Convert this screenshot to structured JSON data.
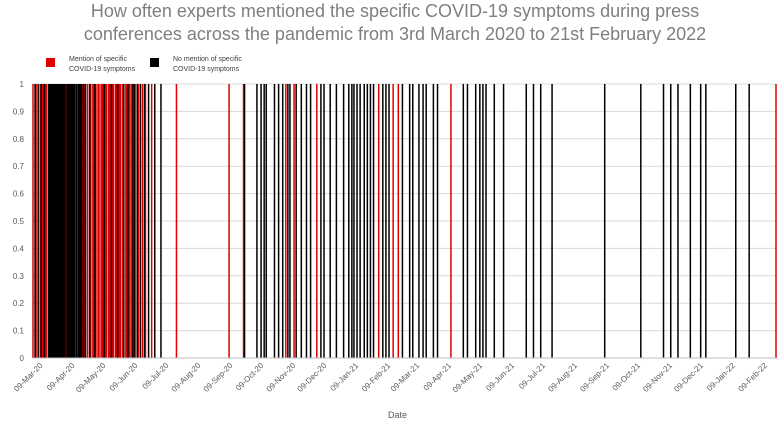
{
  "chart_data": {
    "type": "bar",
    "title": "How often experts mentioned the specific COVID-19 symptoms during press conferences across the pandemic from 3rd March 2020 to 21st February 2022",
    "xlabel": "Date",
    "ylabel": "",
    "ylim": [
      0,
      1
    ],
    "yticks": [
      "0",
      "0.1",
      "0.2",
      "0.3",
      "0.4",
      "0.5",
      "0.6",
      "0.7",
      "0.8",
      "0.9",
      "1"
    ],
    "xticks": [
      "09-Mar-20",
      "09-Apr-20",
      "09-May-20",
      "09-Jun-20",
      "09-Jul-20",
      "09-Aug-20",
      "09-Sep-20",
      "09-Oct-20",
      "09-Nov-20",
      "09-Dec-20",
      "09-Jan-21",
      "09-Feb-21",
      "09-Mar-21",
      "09-Apr-21",
      "09-May-21",
      "09-Jun-21",
      "09-Jul-21",
      "09-Aug-21",
      "09-Sep-21",
      "09-Oct-21",
      "09-Nov-21",
      "09-Dec-21",
      "09-Jan-22",
      "09-Feb-22"
    ],
    "x_start": "2020-03-03",
    "x_end": "2022-02-21",
    "legend": [
      {
        "label": "Mention of specific COVID-19 symptoms",
        "color": "#e00000"
      },
      {
        "label": "No mention of specific COVID-19 symptoms",
        "color": "#000000"
      }
    ],
    "series": [
      {
        "name": "Mention of specific COVID-19 symptoms",
        "color": "#e00000",
        "value": 1,
        "dates": [
          "2020-03-03",
          "2020-03-06",
          "2020-03-10",
          "2020-03-12",
          "2020-03-13",
          "2020-03-15",
          "2020-03-16",
          "2020-04-04",
          "2020-04-13",
          "2020-04-15",
          "2020-04-20",
          "2020-04-22",
          "2020-04-25",
          "2020-04-28",
          "2020-04-30",
          "2020-05-01",
          "2020-05-03",
          "2020-05-05",
          "2020-05-06",
          "2020-05-08",
          "2020-05-09",
          "2020-05-10",
          "2020-05-12",
          "2020-05-13",
          "2020-05-15",
          "2020-05-16",
          "2020-05-17",
          "2020-05-19",
          "2020-05-20",
          "2020-05-22",
          "2020-05-23",
          "2020-05-25",
          "2020-05-26",
          "2020-05-27",
          "2020-05-29",
          "2020-06-01",
          "2020-06-02",
          "2020-06-04",
          "2020-06-05",
          "2020-06-08",
          "2020-06-10",
          "2020-06-13",
          "2020-06-17",
          "2020-06-20",
          "2020-06-26",
          "2020-07-20",
          "2020-09-09",
          "2020-09-23",
          "2020-11-03",
          "2020-11-11",
          "2020-12-03",
          "2021-02-01",
          "2021-02-15",
          "2021-02-20",
          "2021-04-12",
          "2022-02-21"
        ]
      },
      {
        "name": "No mention of specific COVID-19 symptoms",
        "color": "#000000",
        "value": 1,
        "dates": [
          "2020-03-05",
          "2020-03-08",
          "2020-03-11",
          "2020-03-14",
          "2020-03-18",
          "2020-03-19",
          "2020-03-20",
          "2020-03-21",
          "2020-03-22",
          "2020-03-23",
          "2020-03-24",
          "2020-03-25",
          "2020-03-26",
          "2020-03-27",
          "2020-03-28",
          "2020-03-29",
          "2020-03-30",
          "2020-03-31",
          "2020-04-01",
          "2020-04-02",
          "2020-04-03",
          "2020-04-05",
          "2020-04-06",
          "2020-04-07",
          "2020-04-08",
          "2020-04-09",
          "2020-04-10",
          "2020-04-11",
          "2020-04-12",
          "2020-04-14",
          "2020-04-16",
          "2020-04-17",
          "2020-04-18",
          "2020-04-19",
          "2020-04-21",
          "2020-04-23",
          "2020-04-27",
          "2020-05-02",
          "2020-05-11",
          "2020-05-18",
          "2020-05-24",
          "2020-05-30",
          "2020-06-03",
          "2020-06-07",
          "2020-06-09",
          "2020-06-12",
          "2020-06-15",
          "2020-06-19",
          "2020-06-23",
          "2020-06-29",
          "2020-07-05",
          "2020-09-24",
          "2020-10-06",
          "2020-10-10",
          "2020-10-13",
          "2020-10-15",
          "2020-10-23",
          "2020-10-27",
          "2020-10-31",
          "2020-11-05",
          "2020-11-07",
          "2020-11-13",
          "2020-11-18",
          "2020-11-23",
          "2020-11-27",
          "2020-12-07",
          "2020-12-10",
          "2020-12-16",
          "2020-12-22",
          "2020-12-29",
          "2021-01-03",
          "2021-01-06",
          "2021-01-08",
          "2021-01-11",
          "2021-01-14",
          "2021-01-18",
          "2021-01-21",
          "2021-01-24",
          "2021-01-27",
          "2021-02-05",
          "2021-02-08",
          "2021-02-11",
          "2021-02-24",
          "2021-03-03",
          "2021-03-06",
          "2021-03-12",
          "2021-03-16",
          "2021-03-19",
          "2021-03-26",
          "2021-03-30",
          "2021-04-24",
          "2021-04-28",
          "2021-05-06",
          "2021-05-10",
          "2021-05-13",
          "2021-05-16",
          "2021-05-24",
          "2021-06-02",
          "2021-06-24",
          "2021-07-01",
          "2021-07-08",
          "2021-07-19",
          "2021-09-08",
          "2021-10-13",
          "2021-11-04",
          "2021-11-11",
          "2021-11-18",
          "2021-11-30",
          "2021-12-10",
          "2021-12-15",
          "2022-01-13",
          "2022-01-26"
        ]
      }
    ]
  }
}
